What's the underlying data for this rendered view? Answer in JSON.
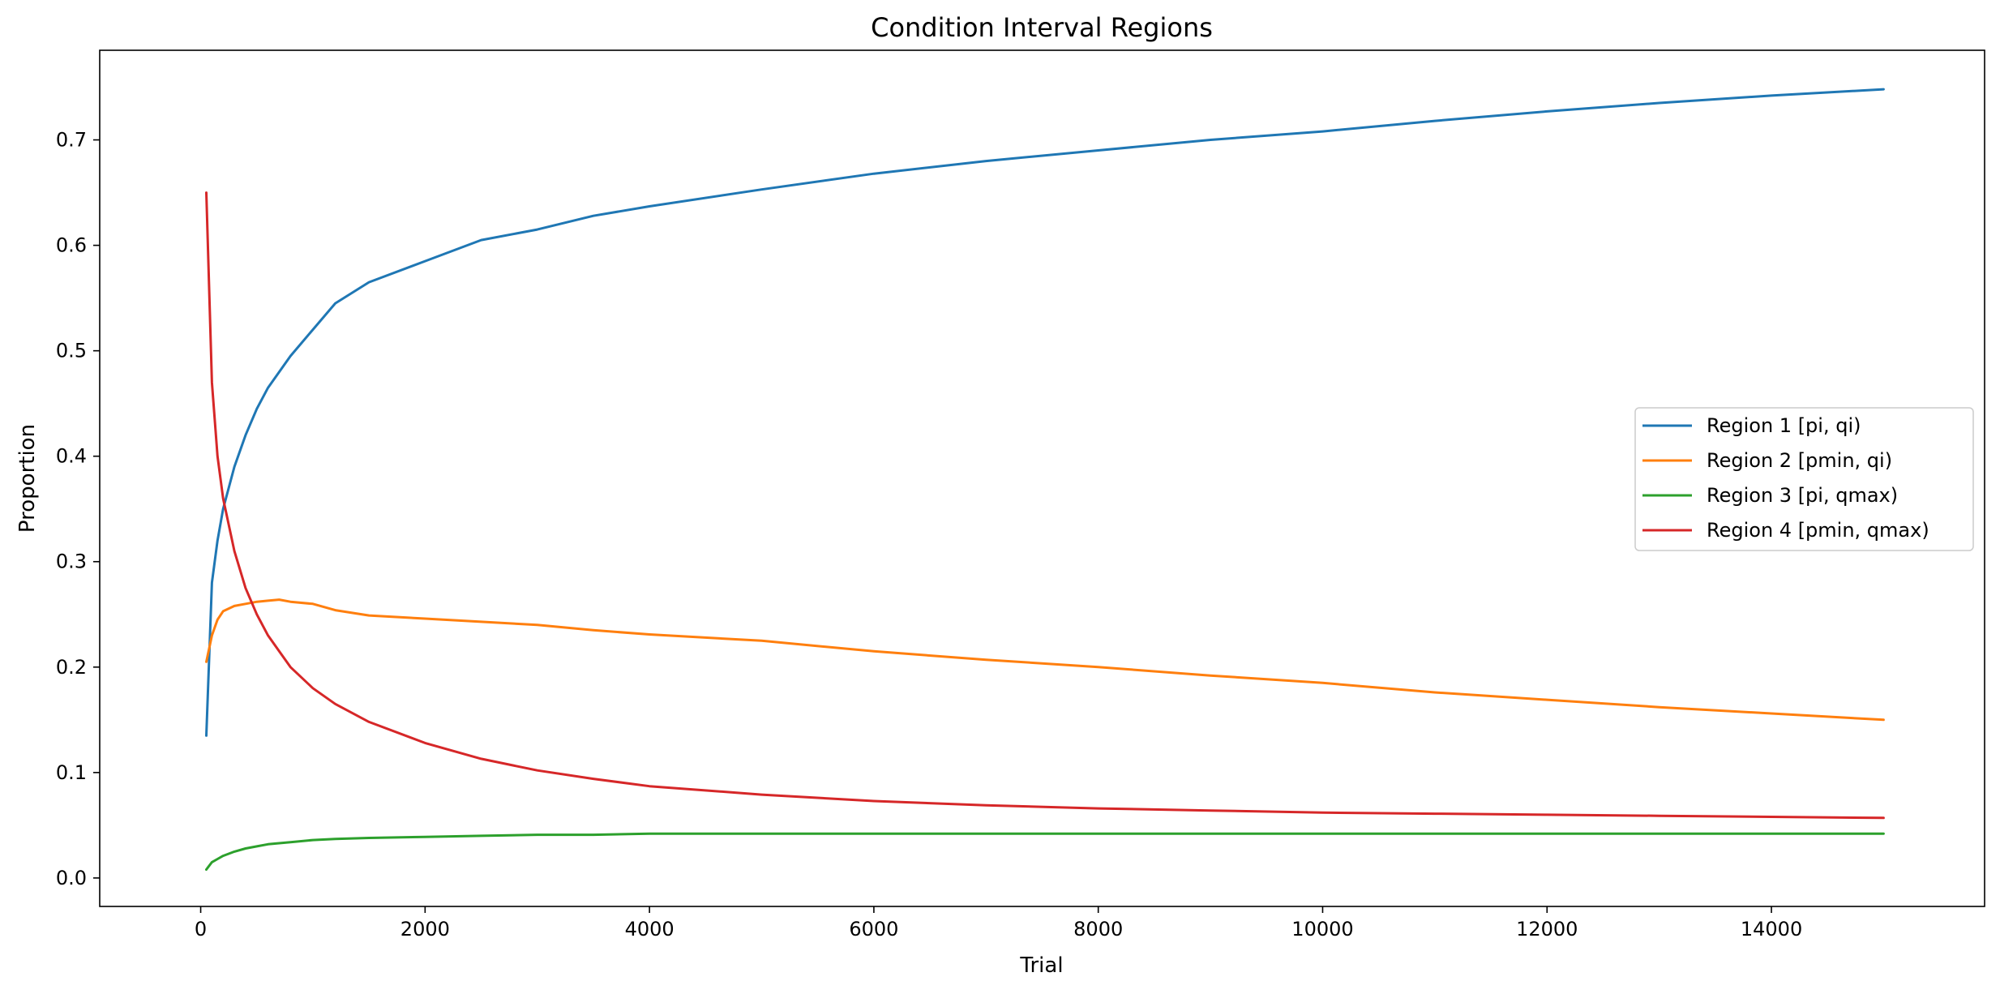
{
  "chart_data": {
    "type": "line",
    "title": "Condition Interval Regions",
    "xlabel": "Trial",
    "ylabel": "Proportion",
    "xlim": [
      -900,
      15900
    ],
    "ylim": [
      -0.027,
      0.785
    ],
    "xticks": [
      0,
      2000,
      4000,
      6000,
      8000,
      10000,
      12000,
      14000
    ],
    "xtick_labels": [
      "0",
      "2000",
      "4000",
      "6000",
      "8000",
      "10000",
      "12000",
      "14000"
    ],
    "yticks": [
      0.0,
      0.1,
      0.2,
      0.3,
      0.4,
      0.5,
      0.6,
      0.7
    ],
    "ytick_labels": [
      "0.0",
      "0.1",
      "0.2",
      "0.3",
      "0.4",
      "0.5",
      "0.6",
      "0.7"
    ],
    "grid": false,
    "legend_position": "center-right",
    "x": [
      50,
      100,
      150,
      200,
      300,
      400,
      500,
      600,
      700,
      800,
      1000,
      1200,
      1500,
      2000,
      2500,
      3000,
      3500,
      4000,
      5000,
      6000,
      7000,
      8000,
      9000,
      10000,
      11000,
      12000,
      13000,
      14000,
      15000
    ],
    "series": [
      {
        "name": "Region 1 [pi, qi)",
        "color": "#1f77b4",
        "values": [
          0.135,
          0.28,
          0.32,
          0.35,
          0.39,
          0.42,
          0.445,
          0.465,
          0.48,
          0.495,
          0.52,
          0.545,
          0.565,
          0.585,
          0.605,
          0.615,
          0.628,
          0.637,
          0.653,
          0.668,
          0.68,
          0.69,
          0.7,
          0.708,
          0.718,
          0.727,
          0.735,
          0.742,
          0.748
        ]
      },
      {
        "name": "Region 2 [pmin, qi)",
        "color": "#ff7f0e",
        "values": [
          0.205,
          0.23,
          0.245,
          0.253,
          0.258,
          0.26,
          0.262,
          0.263,
          0.264,
          0.262,
          0.26,
          0.254,
          0.249,
          0.246,
          0.243,
          0.24,
          0.235,
          0.231,
          0.225,
          0.215,
          0.207,
          0.2,
          0.192,
          0.185,
          0.176,
          0.169,
          0.162,
          0.156,
          0.15
        ]
      },
      {
        "name": "Region 3 [pi, qmax)",
        "color": "#2ca02c",
        "values": [
          0.008,
          0.015,
          0.018,
          0.021,
          0.025,
          0.028,
          0.03,
          0.032,
          0.033,
          0.034,
          0.036,
          0.037,
          0.038,
          0.039,
          0.04,
          0.041,
          0.041,
          0.042,
          0.042,
          0.042,
          0.042,
          0.042,
          0.042,
          0.042,
          0.042,
          0.042,
          0.042,
          0.042,
          0.042
        ]
      },
      {
        "name": "Region 4 [pmin, qmax)",
        "color": "#d62728",
        "values": [
          0.65,
          0.47,
          0.4,
          0.36,
          0.31,
          0.275,
          0.25,
          0.23,
          0.215,
          0.2,
          0.18,
          0.165,
          0.148,
          0.128,
          0.113,
          0.102,
          0.094,
          0.087,
          0.079,
          0.073,
          0.069,
          0.066,
          0.064,
          0.062,
          0.061,
          0.06,
          0.059,
          0.058,
          0.057
        ]
      }
    ]
  }
}
